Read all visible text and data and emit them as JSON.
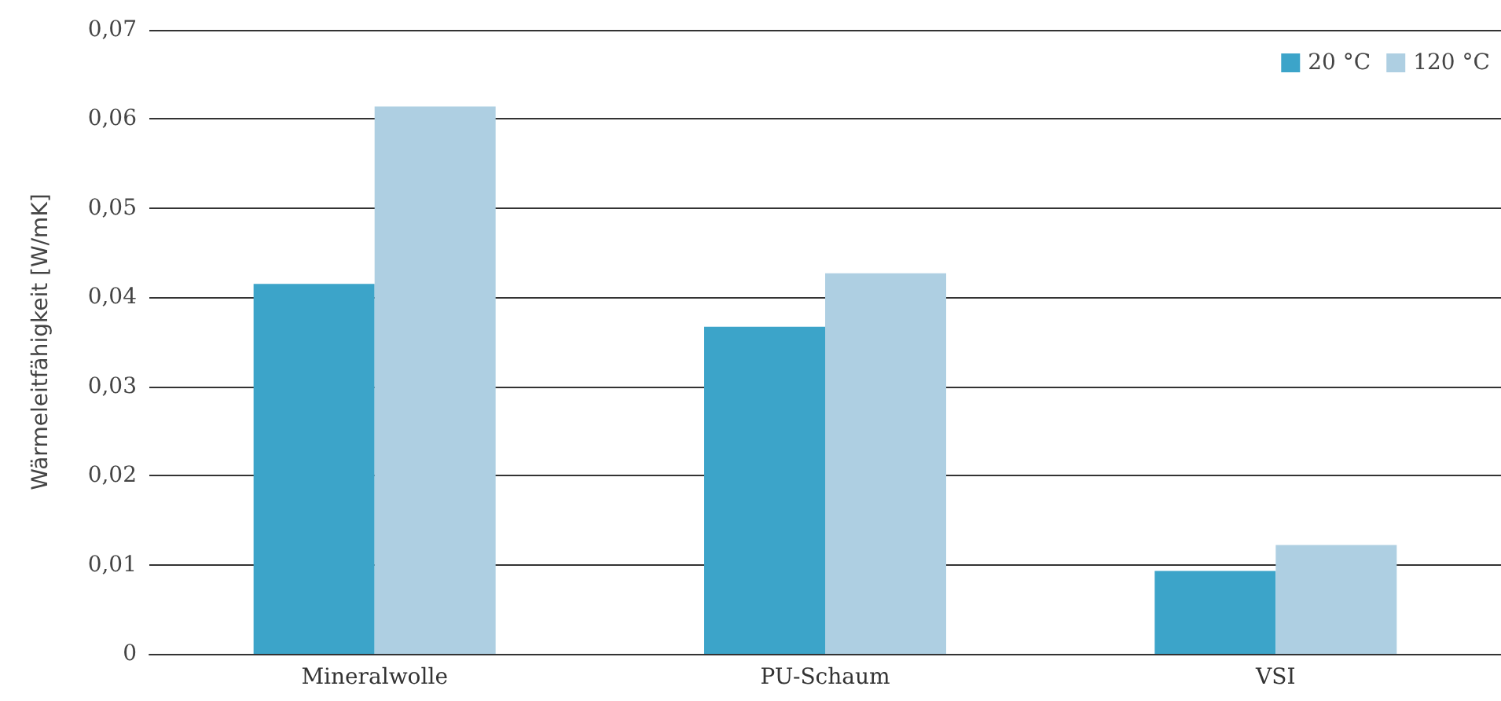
{
  "chart_data": {
    "type": "bar",
    "ylabel": "Wärmeleitfähigkeit [W/mK]",
    "categories": [
      "Mineralwolle",
      "PU-Schaum",
      "VSI"
    ],
    "series": [
      {
        "name": "20 °C",
        "color": "#3ca4c9",
        "values": [
          0.0415,
          0.0367,
          0.0093
        ]
      },
      {
        "name": "120 °C",
        "color": "#aecfe2",
        "values": [
          0.0614,
          0.0427,
          0.0122
        ]
      }
    ],
    "ylim": [
      0,
      0.07
    ],
    "yticks": [
      {
        "value": 0,
        "label": "0"
      },
      {
        "value": 0.01,
        "label": "0,01"
      },
      {
        "value": 0.02,
        "label": "0,02"
      },
      {
        "value": 0.03,
        "label": "0,03"
      },
      {
        "value": 0.04,
        "label": "0,04"
      },
      {
        "value": 0.05,
        "label": "0,05"
      },
      {
        "value": 0.06,
        "label": "0,06"
      },
      {
        "value": 0.07,
        "label": "0,07"
      }
    ],
    "grid": "y",
    "legend": "top right"
  }
}
